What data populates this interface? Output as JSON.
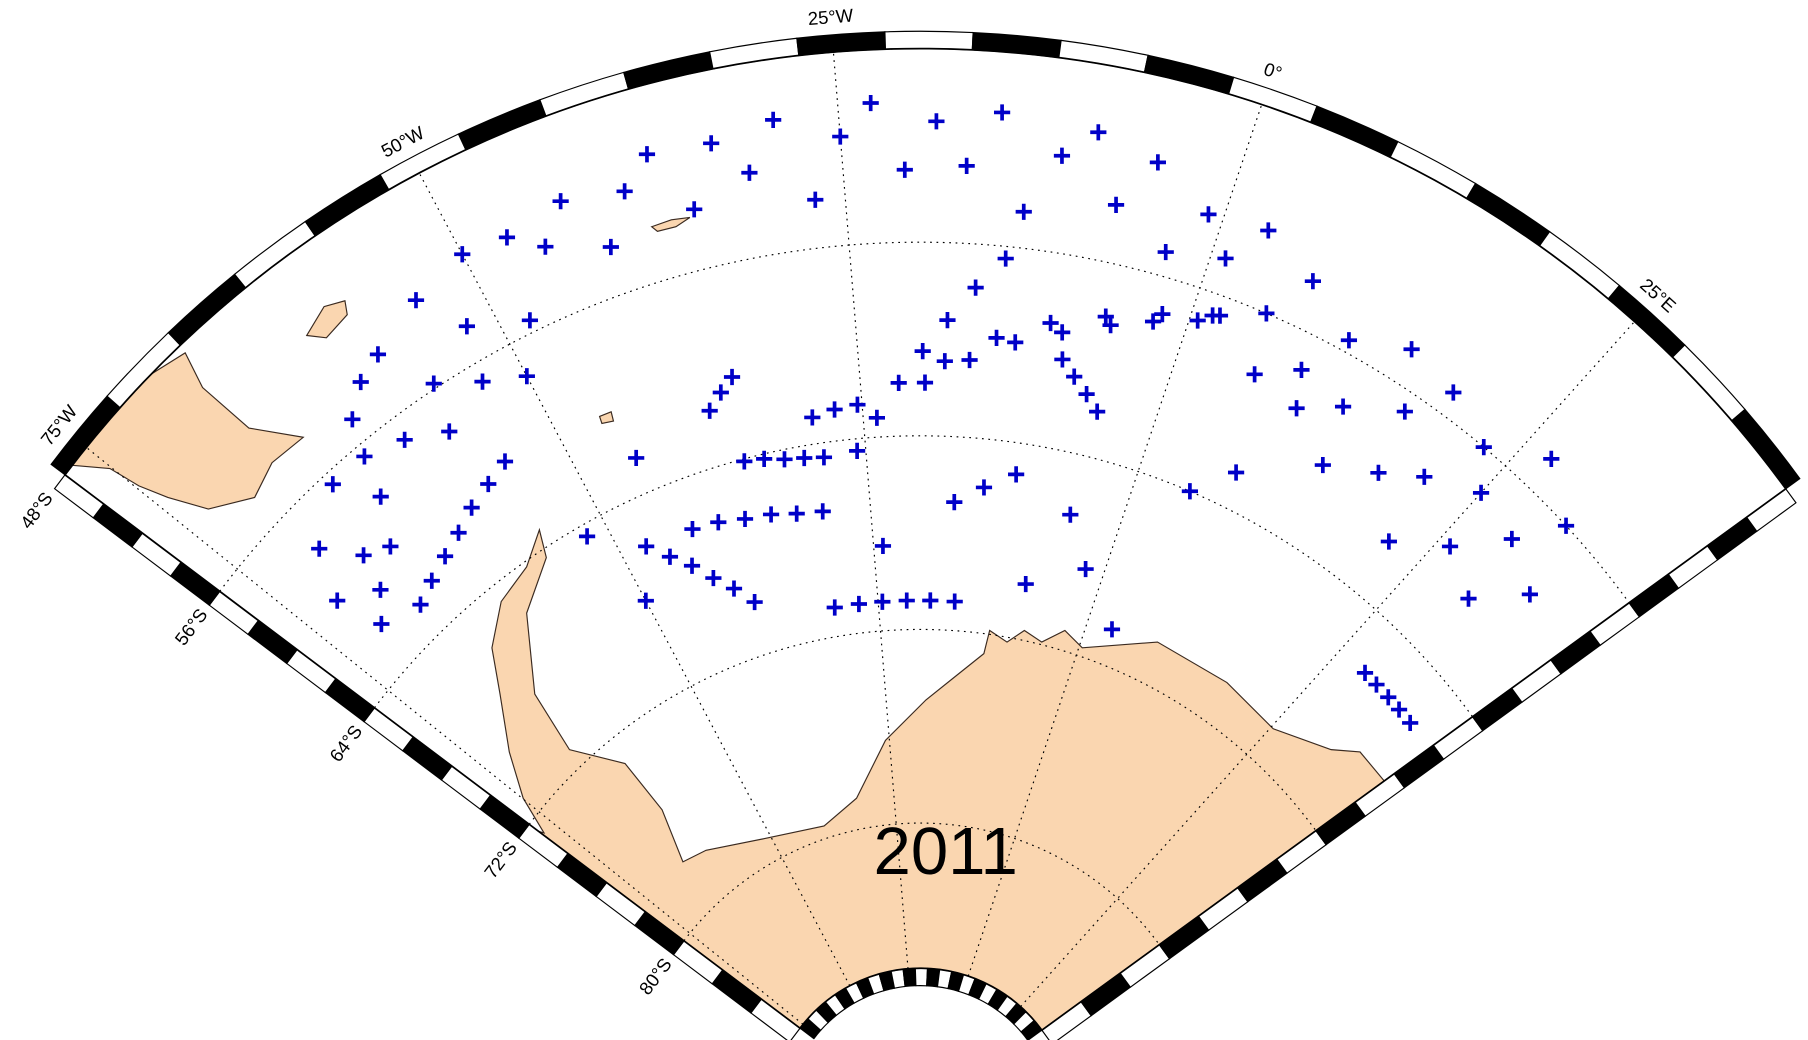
{
  "map": {
    "title": "2011",
    "lonlim": [
      -77,
      38
    ],
    "latlim": [
      -86,
      -48
    ],
    "lonticks": [
      {
        "value": -75,
        "label": "75°W"
      },
      {
        "value": -50,
        "label": "50°W"
      },
      {
        "value": -25,
        "label": "25°W"
      },
      {
        "value": 0,
        "label": "0°"
      },
      {
        "value": 25,
        "label": "25°E"
      }
    ],
    "latticks": [
      {
        "value": -48,
        "label": "48°S"
      },
      {
        "value": -56,
        "label": "56°S"
      },
      {
        "value": -64,
        "label": "64°S"
      },
      {
        "value": -72,
        "label": "72°S"
      },
      {
        "value": -80,
        "label": "80°S"
      }
    ],
    "marker_color": "#0000c8",
    "land_color": "#fad6b0",
    "tracks": [
      {
        "lon": [
          -67.5,
          -65.4,
          -63.2,
          -61.1,
          -59.0,
          -56.8,
          -54.7
        ],
        "lat": [
          -62.6,
          -62.2,
          -61.8,
          -61.4,
          -60.9,
          -60.5,
          -60.1
        ]
      },
      {
        "lon": [
          -19.6,
          -16,
          -12.5,
          -9,
          -5.5,
          -2.5,
          0.6
        ],
        "lat": [
          -61.8,
          -60.8,
          -59.9,
          -59.2,
          -58.5,
          -57.9,
          -57.3
        ]
      },
      {
        "lon": [
          -18,
          -14,
          -10,
          -6,
          -2,
          1.5
        ],
        "lat": [
          -60.9,
          -59.8,
          -58.9,
          -58.2,
          -57.5,
          -56.9
        ]
      },
      {
        "lon": [
          -47.5,
          -45.8,
          -44.1,
          -42.5,
          -40.8,
          -39.1
        ],
        "lat": [
          -66,
          -66.8,
          -67.5,
          -68.3,
          -69,
          -69.8
        ]
      },
      {
        "lon": [
          -42.7,
          -40.1,
          -37.5,
          -34.9,
          -32.4,
          -29.8
        ],
        "lat": [
          -66.1,
          -66.2,
          -66.4,
          -66.5,
          -66.7,
          -66.8
        ]
      },
      {
        "lon": [
          -36.1,
          -34.3,
          -32.5,
          -30.7,
          -28.9
        ],
        "lat": [
          -64.1,
          -64.2,
          -64.4,
          -64.5,
          -64.6
        ]
      },
      {
        "lon": [
          -30.2,
          -27.3,
          -24.5,
          -21.6,
          -18.8,
          -15.9
        ],
        "lat": [
          -70.8,
          -70.8,
          -70.8,
          -70.8,
          -70.8,
          -70.8
        ]
      },
      {
        "lon": [
          28.3,
          29.9,
          31.6,
          33.2,
          34.9
        ],
        "lat": [
          -66.2,
          -66.2,
          -66.2,
          -66.2,
          -66.2
        ]
      },
      {
        "lon": [
          -8.6,
          -7.4,
          -6.1,
          -4.9
        ],
        "lat": [
          -60.3,
          -60.9,
          -61.5,
          -62.1
        ]
      },
      {
        "lon": [
          -25.8,
          -23.8,
          -21.8,
          -19.8,
          -17.9,
          -15.9,
          -13.9
        ],
        "lat": [
          -64.5,
          -63.2,
          -61.8,
          -60.5,
          -59.2,
          -57.8,
          -56.5
        ]
      },
      {
        "lon": [
          -29.4,
          -27.4,
          -25.4
        ],
        "lat": [
          -62.9,
          -62.7,
          -62.6
        ]
      },
      {
        "lon": [
          -37.8,
          -36.5,
          -35.3
        ],
        "lat": [
          -61.7,
          -61.1,
          -60.6
        ]
      },
      {
        "lon": [
          -16.6,
          -13.8,
          -10.9
        ],
        "lat": [
          -66.7,
          -66,
          -65.3
        ]
      }
    ],
    "points": {
      "lon": [
        -45,
        -43,
        -41,
        -39,
        -37,
        -35,
        -33,
        -31,
        -29,
        -27,
        -25,
        -23,
        -21,
        -19,
        -17,
        -15,
        -13,
        -11,
        -9,
        -7,
        -5,
        -3,
        -1,
        1,
        3,
        5,
        7,
        9,
        11,
        13,
        15,
        17,
        19,
        21,
        23,
        25,
        27,
        29,
        31,
        33,
        30,
        26,
        22,
        18,
        14,
        10,
        6,
        2,
        -72,
        -70,
        -68,
        -66,
        -64,
        -62,
        -60,
        -58,
        -56,
        -54,
        -52,
        -50,
        -48,
        -71,
        -69,
        -66,
        -63,
        -60,
        -57,
        -53,
        -50,
        -47,
        -52,
        -50,
        -24,
        -5,
        -2,
        5,
        8,
        3,
        -8,
        -45
      ],
      "lat": [
        -53,
        -51.5,
        -54,
        -52,
        -50.8,
        -53.5,
        -51,
        -52.5,
        -50.5,
        -54,
        -51.5,
        -50.2,
        -53,
        -51,
        -52.8,
        -50.5,
        -54.5,
        -52,
        -50.8,
        -53.6,
        -51.5,
        -55,
        -53,
        -54.5,
        -52.8,
        -56,
        -54,
        -57.5,
        -55.5,
        -58,
        -54.5,
        -56.8,
        -55,
        -58.5,
        -56,
        -57.5,
        -54.5,
        -58,
        -56,
        -59,
        -61,
        -60,
        -61.5,
        -59.5,
        -60.5,
        -59,
        -58.5,
        -56.8,
        -60,
        -58,
        -59.5,
        -56.5,
        -58.2,
        -55,
        -57,
        -53.5,
        -55.8,
        -52.5,
        -54.5,
        -51.8,
        -55.5,
        -62,
        -61,
        -60,
        -56.5,
        -54,
        -57.8,
        -56.8,
        -57.5,
        -52,
        -64.5,
        -68,
        -68.5,
        -66.5,
        -68.5,
        -64,
        -62.5,
        -70.5,
        -69.7,
        -62.5
      ]
    }
  }
}
